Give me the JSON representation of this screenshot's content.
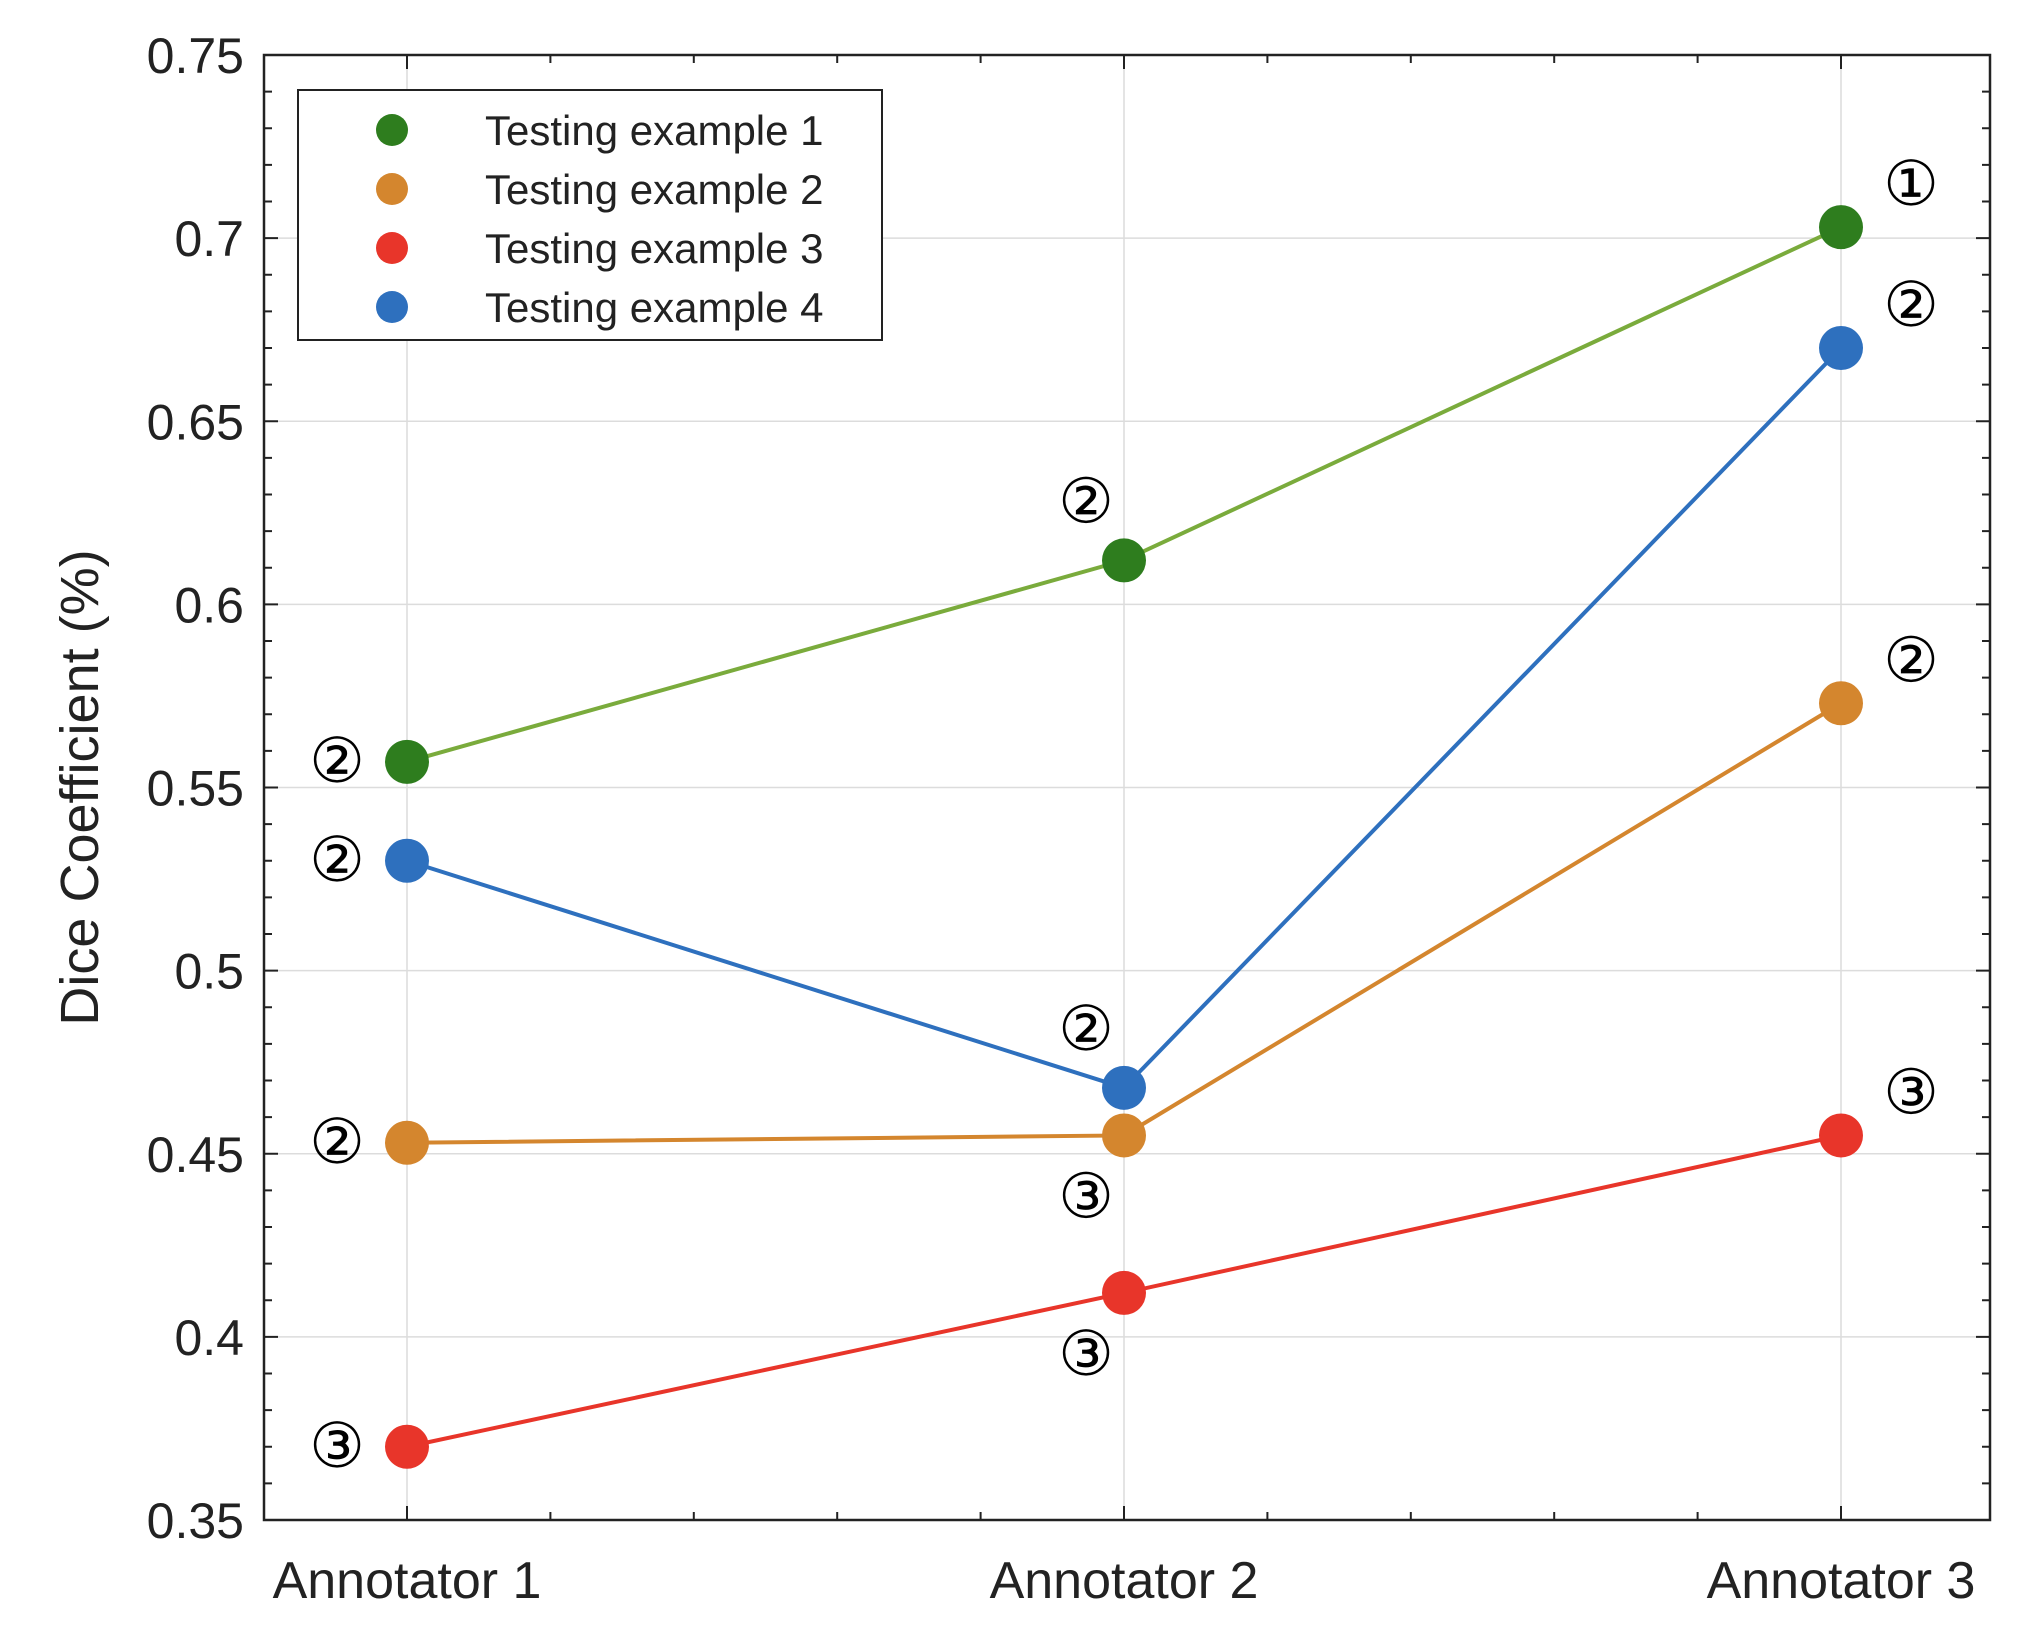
{
  "chart_data": {
    "type": "line",
    "categories": [
      "Annotator 1",
      "Annotator 2",
      "Annotator 3"
    ],
    "ylabel": "Dice Coefficient (%)",
    "ylim": [
      0.35,
      0.75
    ],
    "yticks": [
      0.35,
      0.4,
      0.45,
      0.5,
      0.55,
      0.6,
      0.65,
      0.7,
      0.75
    ],
    "ytick_labels": [
      "0.35",
      "0.4",
      "0.45",
      "0.5",
      "0.55",
      "0.6",
      "0.65",
      "0.7",
      "0.75"
    ],
    "grid": true,
    "legend_position": "top-left",
    "series": [
      {
        "name": "Testing example 1",
        "marker_color": "#2e7d1e",
        "line_color": "#7aab3c",
        "values": [
          0.557,
          0.612,
          0.703
        ],
        "annotations": [
          "②",
          "②",
          "①"
        ],
        "annotation_side": [
          "left",
          "above",
          "right"
        ]
      },
      {
        "name": "Testing example 2",
        "marker_color": "#d4862e",
        "line_color": "#d4862e",
        "values": [
          0.453,
          0.455,
          0.573
        ],
        "annotations": [
          "②",
          "③",
          "②"
        ],
        "annotation_side": [
          "left",
          "below",
          "right"
        ]
      },
      {
        "name": "Testing example 3",
        "marker_color": "#e8352a",
        "line_color": "#e8352a",
        "values": [
          0.37,
          0.412,
          0.455
        ],
        "annotations": [
          "③",
          "③",
          "③"
        ],
        "annotation_side": [
          "left",
          "below",
          "right"
        ]
      },
      {
        "name": "Testing example 4",
        "marker_color": "#2e70be",
        "line_color": "#2e70be",
        "values": [
          0.53,
          0.468,
          0.67
        ],
        "annotations": [
          "②",
          "②",
          "②"
        ],
        "annotation_side": [
          "left",
          "above",
          "right"
        ]
      }
    ]
  }
}
